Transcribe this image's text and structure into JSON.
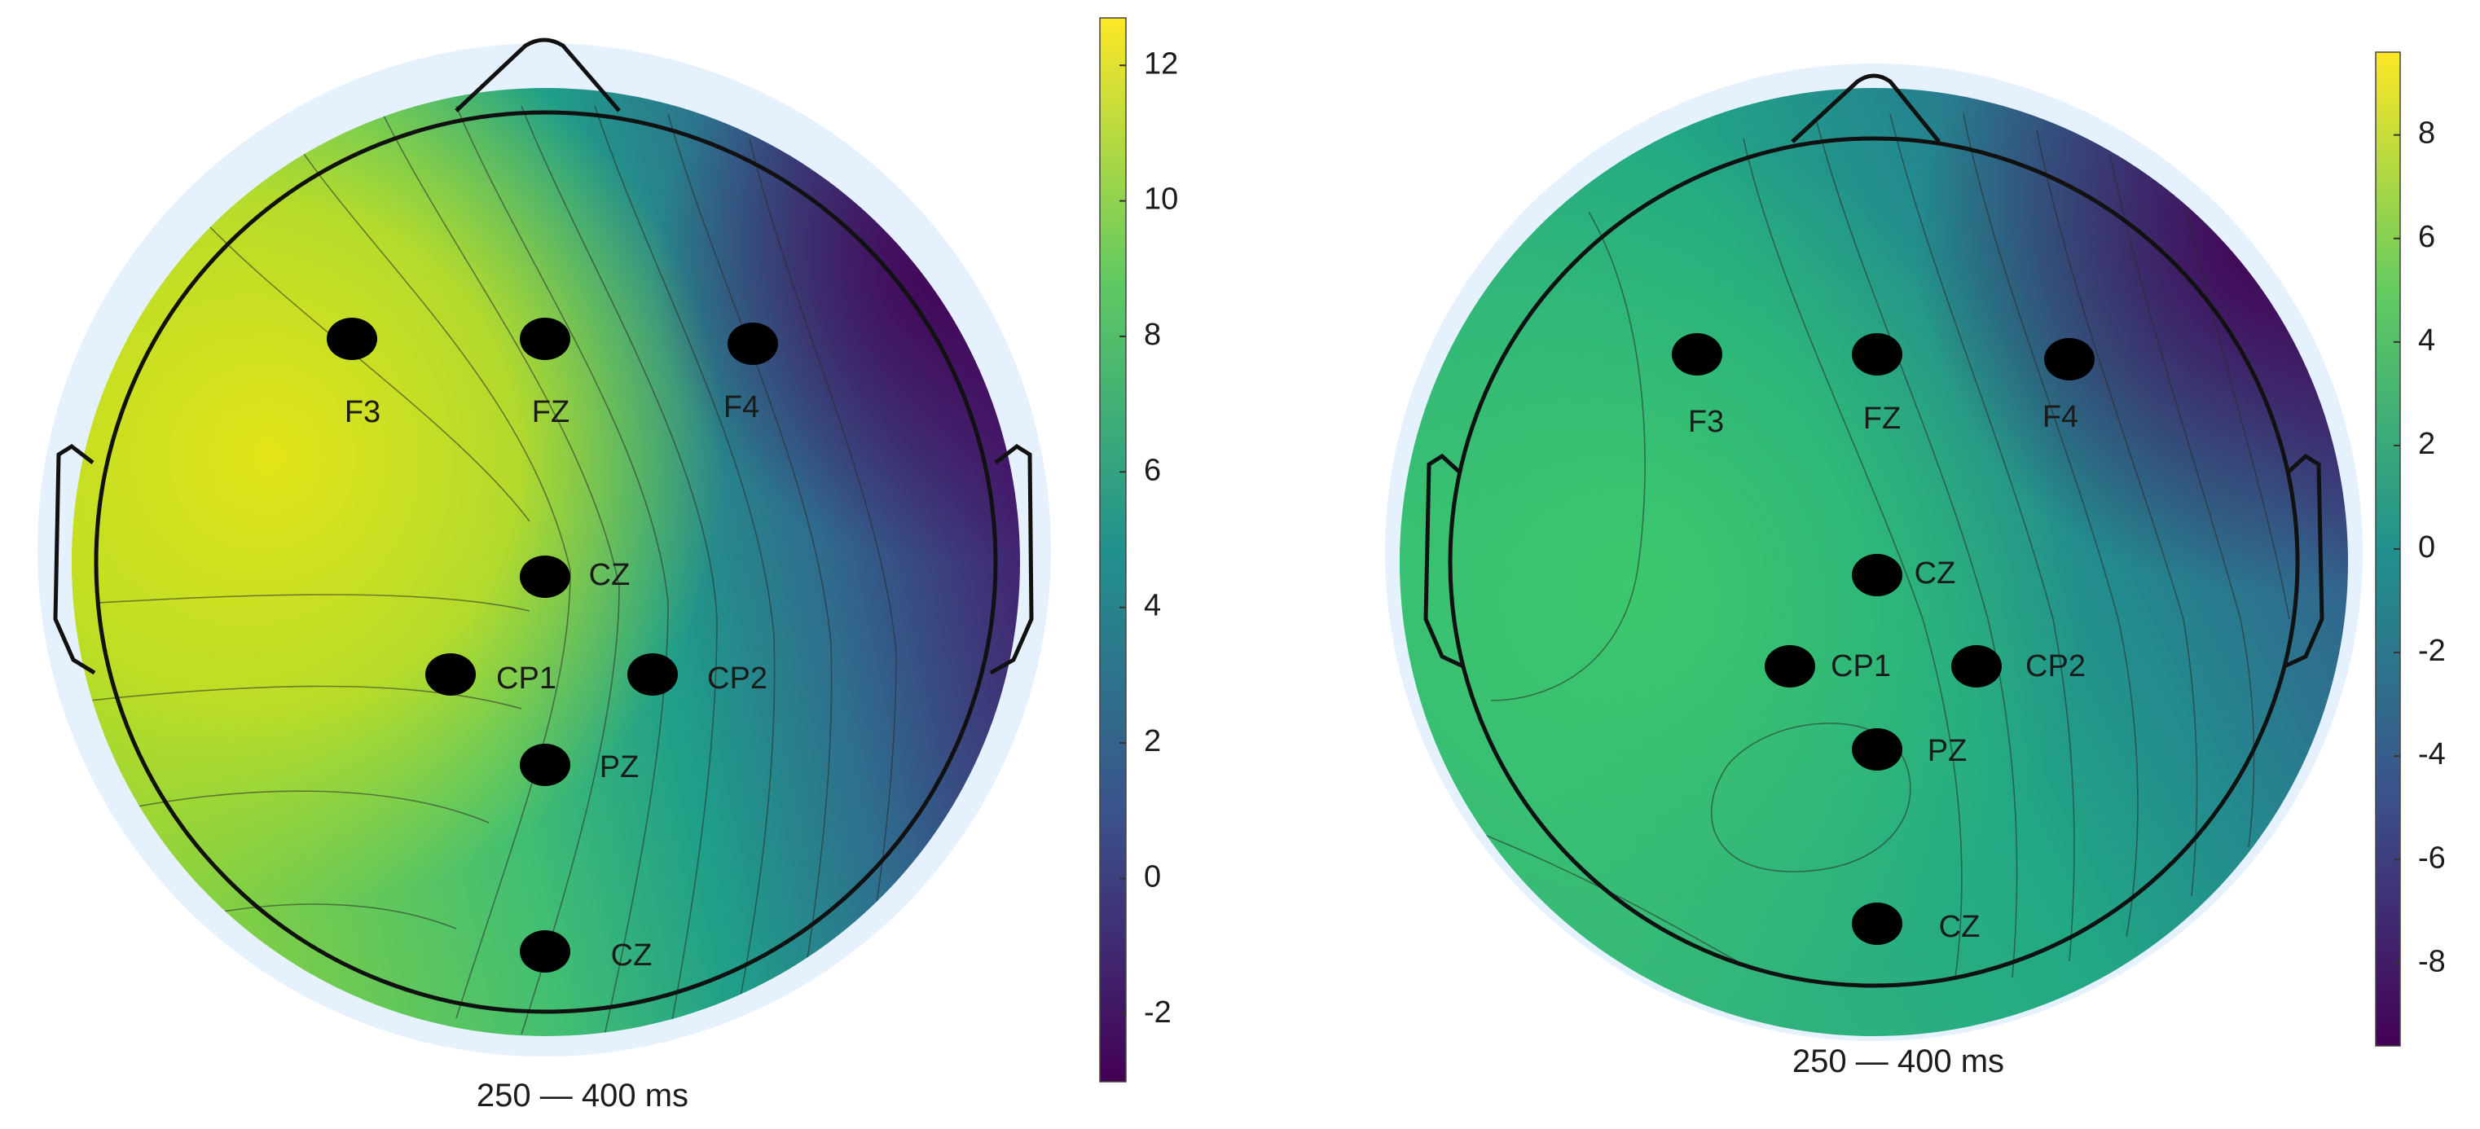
{
  "colors": {
    "outer_ring": "#e6f1fe",
    "outline": "#111111",
    "electrode": "#000000",
    "viridis": [
      "#440154",
      "#3b528b",
      "#21918c",
      "#5ec962",
      "#fde725"
    ]
  },
  "maps": [
    {
      "caption": "250 — 400 ms",
      "colorbar": {
        "range": [
          -3.0,
          12.7
        ],
        "ticks": [
          {
            "value": 12,
            "label": "12"
          },
          {
            "value": 10,
            "label": "10"
          },
          {
            "value": 8,
            "label": "8"
          },
          {
            "value": 6,
            "label": "6"
          },
          {
            "value": 4,
            "label": "4"
          },
          {
            "value": 2,
            "label": "2"
          },
          {
            "value": 0,
            "label": "0"
          },
          {
            "value": -2,
            "label": "-2"
          }
        ]
      },
      "electrodes": [
        {
          "label": "F3"
        },
        {
          "label": "FZ"
        },
        {
          "label": "F4"
        },
        {
          "label": "CZ"
        },
        {
          "label": "CP1"
        },
        {
          "label": "CP2"
        },
        {
          "label": "PZ"
        },
        {
          "label": "CZ"
        }
      ]
    },
    {
      "caption": "250 — 400 ms",
      "colorbar": {
        "range": [
          -9.6,
          9.6
        ],
        "ticks": [
          {
            "value": 8,
            "label": "8"
          },
          {
            "value": 6,
            "label": "6"
          },
          {
            "value": 4,
            "label": "4"
          },
          {
            "value": 2,
            "label": "2"
          },
          {
            "value": 0,
            "label": "0"
          },
          {
            "value": -2,
            "label": "-2"
          },
          {
            "value": -4,
            "label": "-4"
          },
          {
            "value": -6,
            "label": "-6"
          },
          {
            "value": -8,
            "label": "-8"
          }
        ]
      },
      "electrodes": [
        {
          "label": "F3"
        },
        {
          "label": "FZ"
        },
        {
          "label": "F4"
        },
        {
          "label": "CZ"
        },
        {
          "label": "CP1"
        },
        {
          "label": "CP2"
        },
        {
          "label": "PZ"
        },
        {
          "label": "CZ"
        }
      ]
    }
  ]
}
